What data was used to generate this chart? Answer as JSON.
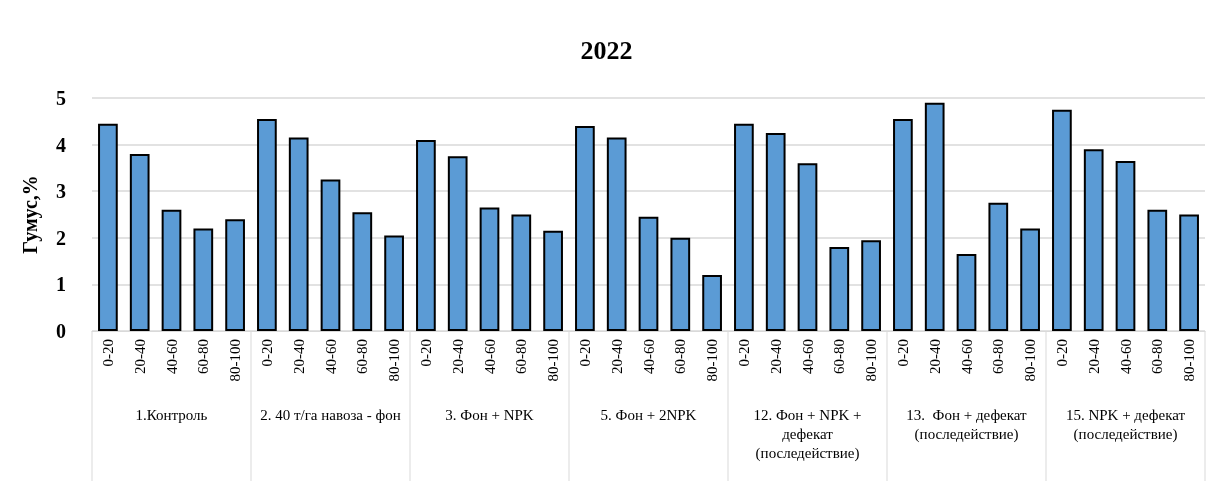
{
  "chart_data": {
    "type": "bar",
    "title": "2022",
    "ylabel": "Гумус,%",
    "categories": [
      "0-20",
      "20-40",
      "40-60",
      "60-80",
      "80-100",
      "0-20",
      "20-40",
      "40-60",
      "60-80",
      "80-100",
      "0-20",
      "20-40",
      "40-60",
      "60-80",
      "80-100",
      "0-20",
      "20-40",
      "40-60",
      "60-80",
      "80-100",
      "0-20",
      "20-40",
      "40-60",
      "60-80",
      "80-100",
      "0-20",
      "20-40",
      "40-60",
      "60-80",
      "80-100",
      "0-20",
      "20-40",
      "40-60",
      "60-80",
      "80-100"
    ],
    "values": [
      4.45,
      3.8,
      2.6,
      2.2,
      2.4,
      4.55,
      4.15,
      3.25,
      2.55,
      2.05,
      4.1,
      3.75,
      2.65,
      2.5,
      2.15,
      4.4,
      4.15,
      2.45,
      2.0,
      1.2,
      4.45,
      4.25,
      3.6,
      1.8,
      1.95,
      4.55,
      4.9,
      1.65,
      2.75,
      2.2,
      4.75,
      3.9,
      3.65,
      2.6,
      2.5
    ],
    "color": "#5b9bd5",
    "ylim": [
      0,
      5
    ],
    "yticks": [
      0,
      1,
      2,
      3,
      4,
      5
    ],
    "grid": "y",
    "annotations": [
      "1.Контроль",
      "2. 40 т/га навоза - фон",
      "3. Фон + NPK",
      "5. Фон + 2NPK",
      "12. Фон + NPK + дефекат (последействие)",
      "13.  Фон + дефекат (последействие)",
      "15. NPK + дефекат (последействие)"
    ]
  }
}
